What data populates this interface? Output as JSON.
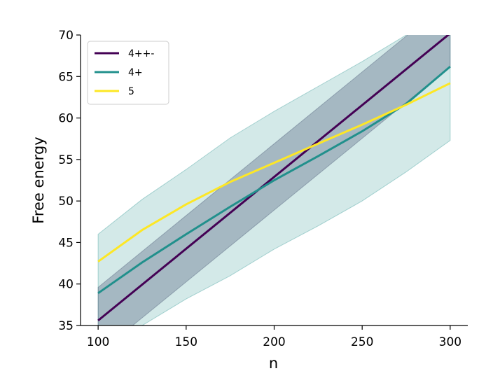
{
  "chart_data": {
    "type": "line",
    "title": "",
    "xlabel": "n",
    "ylabel": "Free energy",
    "xlim": [
      90,
      310
    ],
    "ylim": [
      35,
      70
    ],
    "xticks": [
      100,
      150,
      200,
      250,
      300
    ],
    "yticks": [
      35,
      40,
      45,
      50,
      55,
      60,
      65,
      70
    ],
    "grid": false,
    "legend_position": "top-left",
    "series": [
      {
        "name": "4++-",
        "color": "#440154",
        "band_color": "#3b4a6b",
        "x": [
          100,
          300
        ],
        "y": [
          35.6,
          70.2
        ],
        "band_lower": [
          31.6,
          66.2
        ],
        "band_upper": [
          39.6,
          74.2
        ]
      },
      {
        "name": "4+",
        "color": "#21908c",
        "band_color": "#21908c",
        "x": [
          100,
          125,
          150,
          175,
          200,
          225,
          250,
          275,
          300
        ],
        "y": [
          38.9,
          42.6,
          46.0,
          49.3,
          52.5,
          55.4,
          58.4,
          61.7,
          66.2
        ],
        "band_lower": [
          31.8,
          35.0,
          38.2,
          41.0,
          44.2,
          47.0,
          50.0,
          53.5,
          57.3
        ],
        "band_upper": [
          46.0,
          50.2,
          53.8,
          57.6,
          60.8,
          63.8,
          66.8,
          70.0,
          75.1
        ]
      },
      {
        "name": "5",
        "color": "#fde725",
        "x": [
          100,
          125,
          150,
          175,
          200,
          225,
          250,
          275,
          300
        ],
        "y": [
          42.7,
          46.5,
          49.6,
          52.3,
          54.6,
          56.9,
          59.2,
          61.6,
          64.2
        ]
      }
    ]
  }
}
